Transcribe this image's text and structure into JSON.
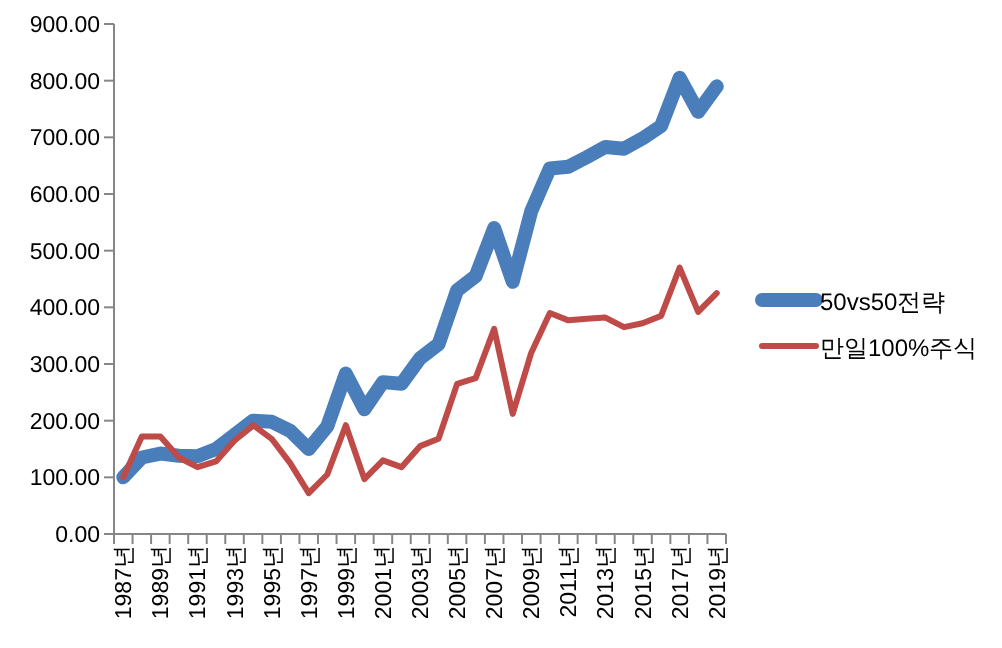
{
  "chart_data": {
    "type": "line",
    "categories": [
      "1987년",
      null,
      "1989년",
      null,
      "1991년",
      null,
      "1993년",
      null,
      "1995년",
      null,
      "1997년",
      null,
      "1999년",
      null,
      "2001년",
      null,
      "2003년",
      null,
      "2005년",
      null,
      "2007년",
      null,
      "2009년",
      null,
      "2011년",
      null,
      "2013년",
      null,
      "2015년",
      null,
      "2017년",
      null,
      "2019년"
    ],
    "series": [
      {
        "name": "50vs50전략",
        "color": "#4a7ebb",
        "values": [
          100,
          135,
          142,
          138,
          137,
          150,
          175,
          200,
          198,
          182,
          150,
          190,
          283,
          220,
          268,
          265,
          310,
          335,
          430,
          455,
          540,
          445,
          570,
          645,
          648,
          665,
          683,
          680,
          698,
          720,
          805,
          745,
          790
        ]
      },
      {
        "name": "만일100%주식",
        "color": "#be4b48",
        "values": [
          100,
          172,
          172,
          135,
          118,
          128,
          165,
          192,
          168,
          125,
          72,
          105,
          192,
          97,
          130,
          118,
          155,
          168,
          265,
          275,
          362,
          212,
          320,
          390,
          377,
          380,
          382,
          365,
          372,
          385,
          470,
          392,
          425
        ]
      }
    ],
    "ylim": [
      0,
      900
    ],
    "yticks": [
      {
        "value": 0,
        "label": "0.00"
      },
      {
        "value": 100,
        "label": "100.00"
      },
      {
        "value": 200,
        "label": "200.00"
      },
      {
        "value": 300,
        "label": "300.00"
      },
      {
        "value": 400,
        "label": "400.00"
      },
      {
        "value": 500,
        "label": "500.00"
      },
      {
        "value": 600,
        "label": "600.00"
      },
      {
        "value": 700,
        "label": "700.00"
      },
      {
        "value": 800,
        "label": "800.00"
      },
      {
        "value": 900,
        "label": "900.00"
      }
    ],
    "legend": "right",
    "marker": "none",
    "line_style": "solid"
  }
}
